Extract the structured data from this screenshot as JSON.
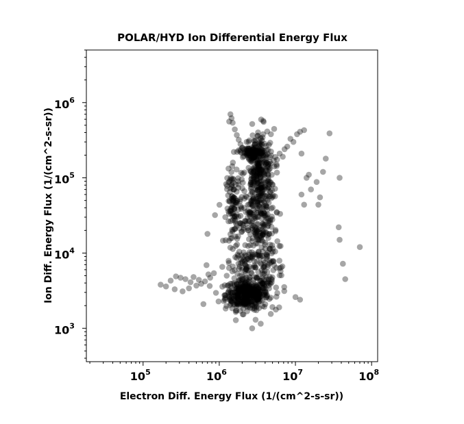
{
  "chart_data": {
    "type": "scatter",
    "title": "POLAR/HYD  Ion Differential Energy Flux",
    "xlabel": "Electron Diff. Energy Flux (1/(cm^2-s-sr))",
    "ylabel": "Ion Diff. Energy Flux (1/(cm^2-s-sr))",
    "x_scale": "log",
    "y_scale": "log",
    "xlim": [
      18000,
      120000000
    ],
    "ylim": [
      360,
      5000000
    ],
    "grid": false,
    "legend": "none",
    "marker_color": "#000000",
    "marker_opacity": 0.35,
    "x_ticks": [
      {
        "base": "10",
        "exp": "5",
        "value": 100000
      },
      {
        "base": "10",
        "exp": "6",
        "value": 1000000
      },
      {
        "base": "10",
        "exp": "7",
        "value": 10000000
      },
      {
        "base": "10",
        "exp": "8",
        "value": 100000000
      }
    ],
    "y_ticks": [
      {
        "base": "10",
        "exp": "3",
        "value": 1000
      },
      {
        "base": "10",
        "exp": "4",
        "value": 10000
      },
      {
        "base": "10",
        "exp": "5",
        "value": 100000
      },
      {
        "base": "10",
        "exp": "6",
        "value": 1000000
      }
    ],
    "clusters": [
      {
        "x_center": 2300000,
        "y_center": 2800,
        "x_spread": 0.14,
        "y_spread": 0.1,
        "count": 420
      },
      {
        "x_center": 3300000,
        "y_center": 110000,
        "x_spread": 0.1,
        "y_spread": 0.3,
        "count": 360
      },
      {
        "x_center": 3400000,
        "y_center": 20000,
        "x_spread": 0.12,
        "y_spread": 0.22,
        "count": 160
      },
      {
        "x_center": 2700000,
        "y_center": 215000,
        "x_spread": 0.08,
        "y_spread": 0.03,
        "count": 90
      },
      {
        "x_center": 1550000,
        "y_center": 40000,
        "x_spread": 0.05,
        "y_spread": 0.25,
        "count": 110
      },
      {
        "x_center": 2500000,
        "y_center": 7000,
        "x_spread": 0.15,
        "y_spread": 0.12,
        "count": 90
      },
      {
        "x_center": 4500000,
        "y_center": 4500,
        "x_spread": 0.12,
        "y_spread": 0.15,
        "count": 50
      }
    ],
    "points": [
      [
        9400000,
        300000
      ],
      [
        7800000,
        260000
      ],
      [
        6200000,
        210000
      ],
      [
        5200000,
        170000
      ],
      [
        4300000,
        140000
      ],
      [
        8600000,
        330000
      ],
      [
        10500000,
        380000
      ],
      [
        11500000,
        410000
      ],
      [
        13000000,
        430000
      ],
      [
        7200000,
        240000
      ],
      [
        1400000,
        700000
      ],
      [
        1450000,
        620000
      ],
      [
        1500000,
        540000
      ],
      [
        1600000,
        440000
      ],
      [
        1700000,
        370000
      ],
      [
        1800000,
        320000
      ],
      [
        1900000,
        280000
      ],
      [
        2000000,
        250000
      ],
      [
        1350000,
        560000
      ],
      [
        2100000,
        240000
      ],
      [
        170000,
        3800
      ],
      [
        230000,
        4300
      ],
      [
        270000,
        4900
      ],
      [
        310000,
        4700
      ],
      [
        360000,
        4500
      ],
      [
        420000,
        4100
      ],
      [
        500000,
        3700
      ],
      [
        580000,
        3900
      ],
      [
        650000,
        4200
      ],
      [
        680000,
        6900
      ],
      [
        720000,
        5200
      ],
      [
        200000,
        3600
      ],
      [
        260000,
        3300
      ],
      [
        330000,
        3100
      ],
      [
        400000,
        3400
      ],
      [
        460000,
        4800
      ],
      [
        540000,
        4400
      ],
      [
        620000,
        2100
      ],
      [
        760000,
        4700
      ],
      [
        850000,
        5400
      ],
      [
        28000000,
        390000
      ],
      [
        25000000,
        180000
      ],
      [
        23000000,
        120000
      ],
      [
        19000000,
        88000
      ],
      [
        21000000,
        55000
      ],
      [
        20000000,
        44000
      ],
      [
        38000000,
        100000
      ],
      [
        37000000,
        22000
      ],
      [
        38000000,
        15000
      ],
      [
        42000000,
        7200
      ],
      [
        45000000,
        4500
      ],
      [
        70000000,
        12000
      ],
      [
        14000000,
        100000
      ],
      [
        16000000,
        70000
      ],
      [
        12000000,
        60000
      ],
      [
        13000000,
        44000
      ],
      [
        700000,
        18000
      ],
      [
        880000,
        32000
      ],
      [
        2700000,
        1000
      ],
      [
        3000000,
        1300
      ],
      [
        10000000,
        2600
      ],
      [
        11500000,
        2400
      ],
      [
        12000000,
        210000
      ],
      [
        15000000,
        110000
      ],
      [
        3500000,
        1150
      ]
    ]
  }
}
